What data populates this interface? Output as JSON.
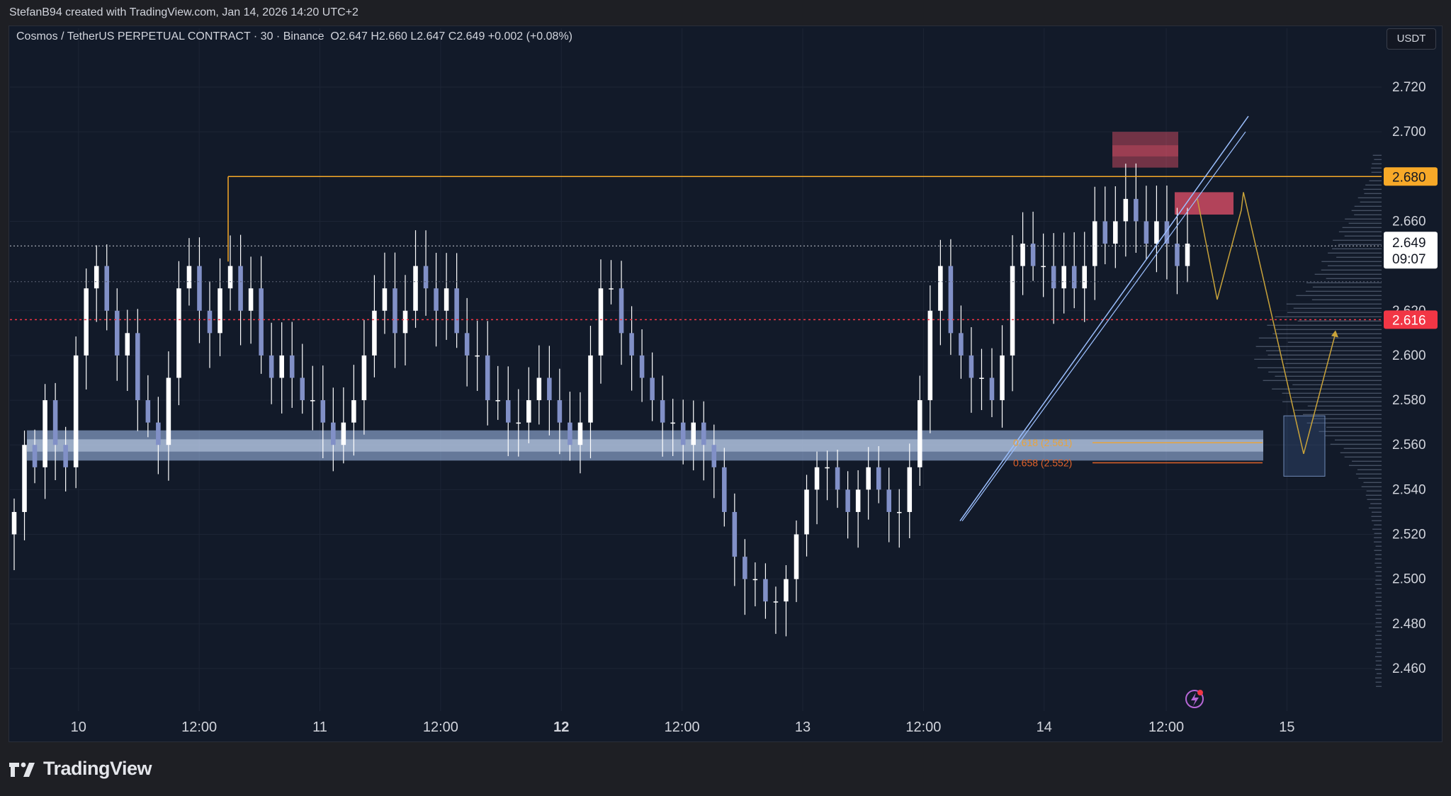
{
  "header": {
    "attribution": "StefanB94 created with TradingView.com, Jan 14, 2026 14:20 UTC+2"
  },
  "legend": {
    "symbol": "Cosmos / TetherUS PERPETUAL CONTRACT · 30 · Binance",
    "ohlc": "O2.647  H2.660  L2.647  C2.649  +0.002 (+0.08%)"
  },
  "currency_button": "USDT",
  "footer": {
    "brand": "TradingView"
  },
  "colors": {
    "background": "#121a29",
    "candle": "#ffffff",
    "resistance": "#f7a928",
    "red_level": "#f23645",
    "zone": "#aac6f5",
    "supply": "#e8526b",
    "projection": "#c9a33a"
  },
  "chart_data": {
    "type": "candlestick",
    "title": "Cosmos / TetherUS PERPETUAL CONTRACT · 30 · Binance",
    "ylim": [
      2.45,
      2.735
    ],
    "y_ticks": [
      "2.720",
      "2.700",
      "2.660",
      "2.620",
      "2.600",
      "2.580",
      "2.560",
      "2.540",
      "2.520",
      "2.500",
      "2.480",
      "2.460"
    ],
    "x_ticks": [
      {
        "label": "10",
        "t": 0.05,
        "bold": false
      },
      {
        "label": "12:00",
        "t": 0.138,
        "bold": false
      },
      {
        "label": "11",
        "t": 0.226,
        "bold": false
      },
      {
        "label": "12:00",
        "t": 0.314,
        "bold": false
      },
      {
        "label": "12",
        "t": 0.402,
        "bold": true
      },
      {
        "label": "12:00",
        "t": 0.49,
        "bold": false
      },
      {
        "label": "13",
        "t": 0.578,
        "bold": false
      },
      {
        "label": "12:00",
        "t": 0.666,
        "bold": false
      },
      {
        "label": "14",
        "t": 0.754,
        "bold": false
      },
      {
        "label": "12:00",
        "t": 0.843,
        "bold": false
      },
      {
        "label": "15",
        "t": 0.931,
        "bold": false
      }
    ],
    "price_labels": {
      "resistance": "2.680",
      "current": "2.649",
      "countdown": "09:07",
      "red_level": "2.616"
    },
    "fib_labels": [
      "0.618 (2.561)",
      "0.658 (2.552)"
    ],
    "levels": {
      "resistance": 2.68,
      "current": 2.649,
      "red_level": 2.616,
      "prev_close_dotted": 2.633
    },
    "closes": [
      2.53,
      2.56,
      2.55,
      2.58,
      2.56,
      2.55,
      2.6,
      2.63,
      2.64,
      2.62,
      2.6,
      2.61,
      2.58,
      2.57,
      2.56,
      2.59,
      2.63,
      2.64,
      2.62,
      2.61,
      2.63,
      2.64,
      2.62,
      2.63,
      2.6,
      2.59,
      2.6,
      2.59,
      2.58,
      2.58,
      2.57,
      2.56,
      2.57,
      2.58,
      2.6,
      2.62,
      2.63,
      2.61,
      2.62,
      2.64,
      2.63,
      2.62,
      2.63,
      2.61,
      2.6,
      2.6,
      2.58,
      2.58,
      2.57,
      2.57,
      2.58,
      2.59,
      2.58,
      2.57,
      2.56,
      2.57,
      2.6,
      2.63,
      2.63,
      2.61,
      2.6,
      2.59,
      2.58,
      2.57,
      2.57,
      2.56,
      2.57,
      2.56,
      2.55,
      2.53,
      2.51,
      2.5,
      2.5,
      2.49,
      2.49,
      2.5,
      2.52,
      2.54,
      2.55,
      2.55,
      2.54,
      2.53,
      2.54,
      2.55,
      2.54,
      2.53,
      2.53,
      2.55,
      2.58,
      2.62,
      2.64,
      2.61,
      2.6,
      2.59,
      2.59,
      2.58,
      2.6,
      2.64,
      2.65,
      2.64,
      2.64,
      2.63,
      2.64,
      2.63,
      2.64,
      2.66,
      2.65,
      2.66,
      2.67,
      2.66,
      2.65,
      2.66,
      2.65,
      2.64,
      2.65
    ],
    "volume_profile_center": 2.6,
    "projection_path": [
      [
        2.67,
        0
      ],
      [
        2.625,
        1
      ],
      [
        2.665,
        2
      ],
      [
        2.673,
        3
      ],
      [
        2.556,
        4
      ],
      [
        2.61,
        5
      ]
    ]
  }
}
